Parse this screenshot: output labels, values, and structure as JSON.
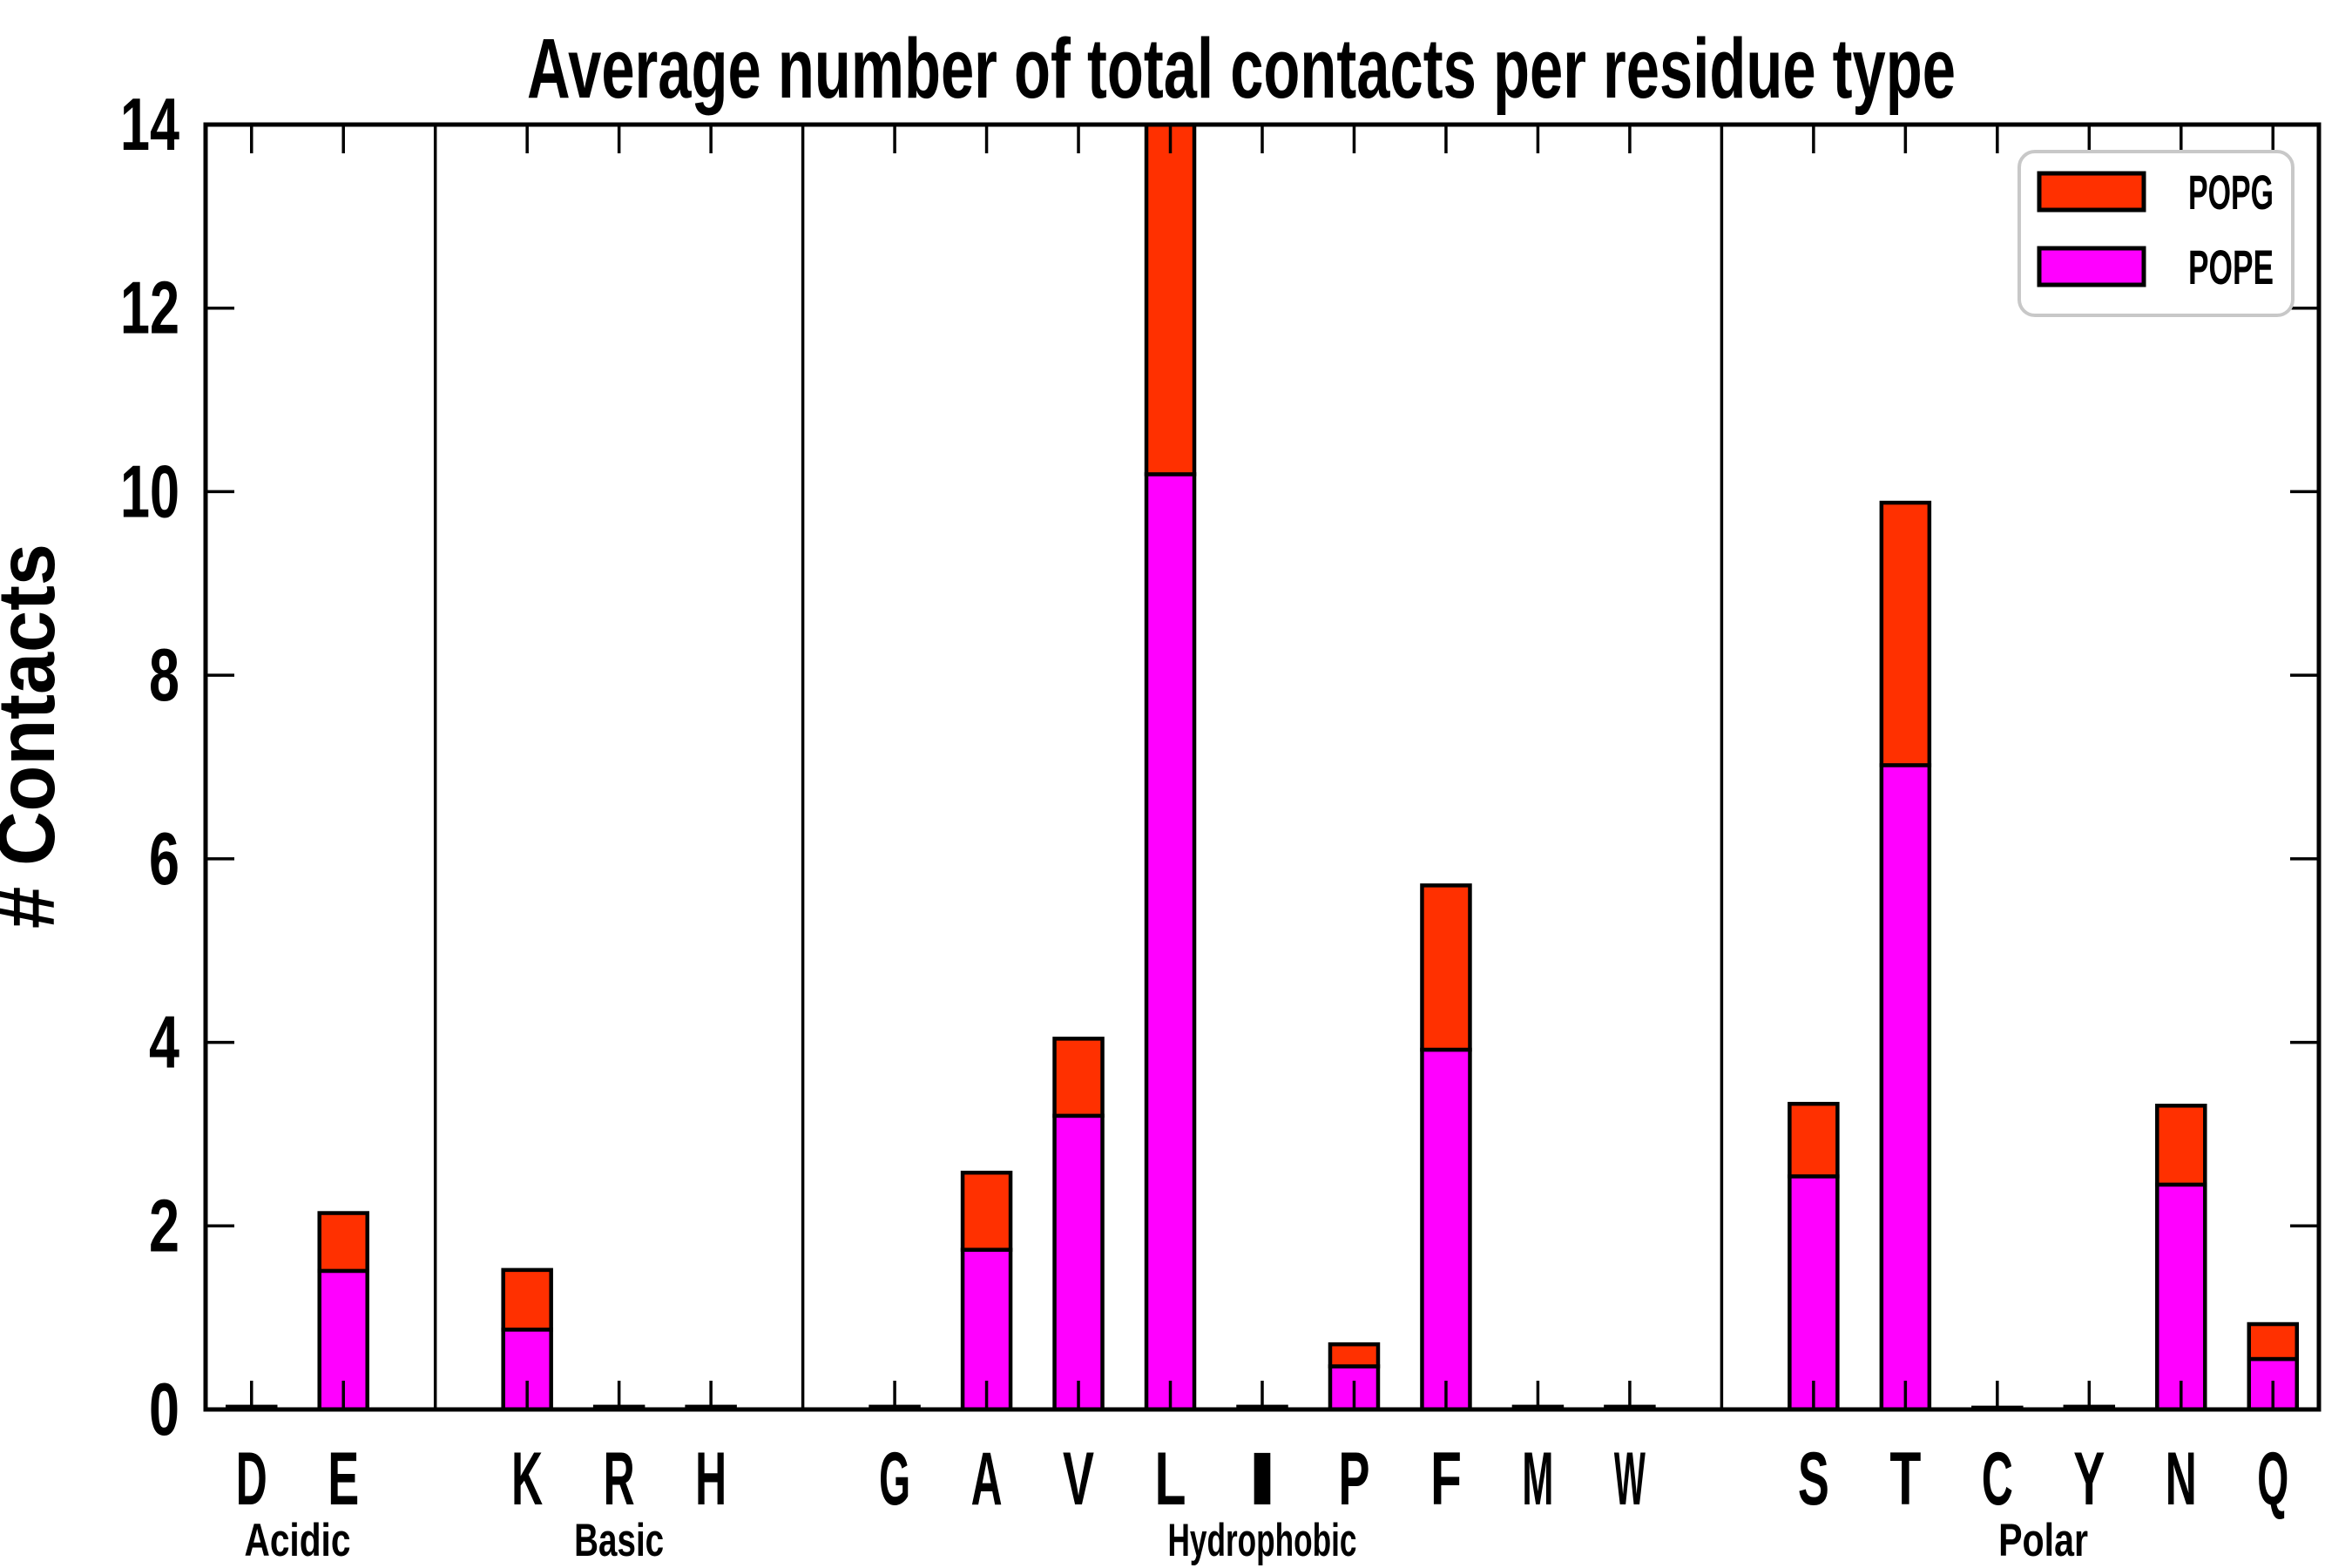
{
  "title": "Average number of total contacts per residue type",
  "ylabel": "# Contacts",
  "legend": {
    "items": [
      {
        "label": "POPG",
        "color": "#ff3000"
      },
      {
        "label": "POPE",
        "color": "#ff00ff"
      }
    ]
  },
  "chart_data": {
    "type": "bar",
    "stacked": true,
    "title": "Average number of total contacts per residue type",
    "xlabel": "",
    "ylabel": "# Contacts",
    "ylim": [
      0,
      14
    ],
    "ytick_step": 2,
    "grid": false,
    "legend_position": "upper right",
    "series_stack_order_bottom_to_top": [
      "POPE",
      "POPG"
    ],
    "colors": {
      "POPE": "#ff00ff",
      "POPG": "#ff3000"
    },
    "bar_edge_color": "#000000",
    "groups": [
      {
        "label": "Acidic",
        "residues": [
          {
            "label": "D",
            "POPE": 0.03,
            "POPG": 0
          },
          {
            "label": "E",
            "POPE": 1.51,
            "POPG": 0.63
          }
        ]
      },
      {
        "label": "Basic",
        "residues": [
          {
            "label": "K",
            "POPE": 0.87,
            "POPG": 0.65
          },
          {
            "label": "R",
            "POPE": 0.03,
            "POPG": 0
          },
          {
            "label": "H",
            "POPE": 0.03,
            "POPG": 0
          }
        ]
      },
      {
        "label": "Hydrophobic",
        "residues": [
          {
            "label": "G",
            "POPE": 0.03,
            "POPG": 0
          },
          {
            "label": "A",
            "POPE": 1.74,
            "POPG": 0.84
          },
          {
            "label": "V",
            "POPE": 3.2,
            "POPG": 0.84
          },
          {
            "label": "L",
            "POPE": 10.19,
            "POPG": 3.81,
            "clipped_at_ylim": true
          },
          {
            "label": "I",
            "POPE": 0.03,
            "POPG": 0
          },
          {
            "label": "P",
            "POPE": 0.47,
            "POPG": 0.24
          },
          {
            "label": "F",
            "POPE": 3.92,
            "POPG": 1.79
          },
          {
            "label": "M",
            "POPE": 0.03,
            "POPG": 0
          },
          {
            "label": "W",
            "POPE": 0.03,
            "POPG": 0
          }
        ]
      },
      {
        "label": "Polar",
        "residues": [
          {
            "label": "S",
            "POPE": 2.54,
            "POPG": 0.79
          },
          {
            "label": "T",
            "POPE": 7.02,
            "POPG": 2.86
          },
          {
            "label": "C",
            "POPE": 0.02,
            "POPG": 0
          },
          {
            "label": "Y",
            "POPE": 0.03,
            "POPG": 0
          },
          {
            "label": "N",
            "POPE": 2.45,
            "POPG": 0.86
          },
          {
            "label": "Q",
            "POPE": 0.55,
            "POPG": 0.38
          }
        ]
      }
    ]
  }
}
